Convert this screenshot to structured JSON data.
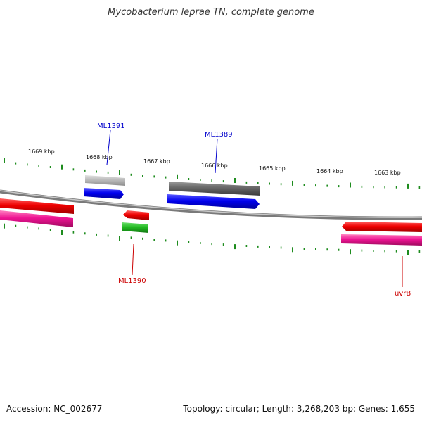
{
  "title": "Mycobacterium leprae TN, complete genome",
  "footer": {
    "accession": "Accession: NC_002677",
    "summary": "Topology: circular; Length: 3,268,203 bp; Genes: 1,655"
  },
  "tick_labels": [
    "1669 kbp",
    "1668 kbp",
    "1667 kbp",
    "1666 kbp",
    "1665 kbp",
    "1664 kbp",
    "1663 kbp"
  ],
  "gene_labels": {
    "ml1391": "ML1391",
    "ml1389": "ML1389",
    "ml1390": "ML1390",
    "uvrb": "uvrB"
  },
  "colors": {
    "backbone": "#8a8a8a",
    "ticks": "#1e8c1e",
    "forward_cds": "#0000ee",
    "reverse_cds": "#ee0000",
    "forward_gene": "#666666",
    "forward_gene_light": "#bbbbbb",
    "reverse_gene": "#ee1493",
    "reverse_gene_green": "#22bb22",
    "label_blue": "#0000cc",
    "label_red": "#cc0000"
  }
}
